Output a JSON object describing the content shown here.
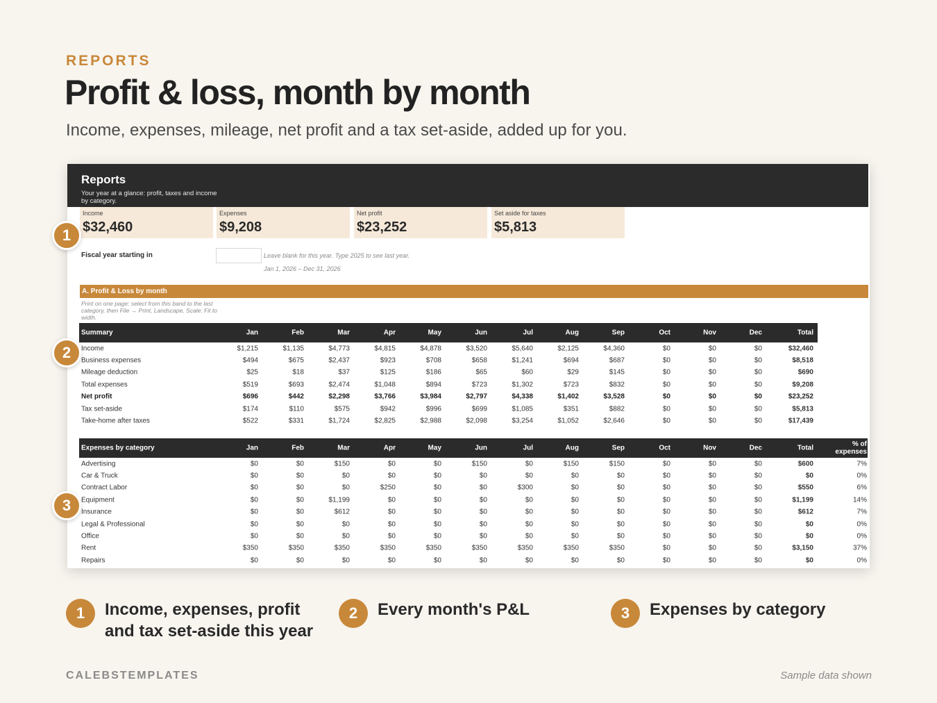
{
  "page": {
    "eyebrow": "REPORTS",
    "headline": "Profit & loss, month by month",
    "subhead": "Income, expenses, mileage, net profit and a tax set-aside, added up for you."
  },
  "sheet": {
    "title": "Reports",
    "subtitle": "Your year at a glance: profit, taxes and income by category.",
    "kpis": [
      {
        "label": "Income",
        "value": "$32,460"
      },
      {
        "label": "Expenses",
        "value": "$9,208"
      },
      {
        "label": "Net profit",
        "value": "$23,252"
      },
      {
        "label": "Set aside for taxes",
        "value": "$5,813"
      }
    ],
    "fiscal": {
      "label": "Fiscal year starting in",
      "value": "",
      "hint": "Leave blank for this year. Type 2025 to see last year.",
      "range": "Jan 1, 2026 – Dec 31, 2026"
    },
    "band": {
      "label": "A. Profit & Loss by month",
      "note": "Print on one page: select from this band to the last category, then File → Print, Landscape, Scale: Fit to width."
    },
    "summary": {
      "title": "Summary",
      "columns": [
        "Jan",
        "Feb",
        "Mar",
        "Apr",
        "May",
        "Jun",
        "Jul",
        "Aug",
        "Sep",
        "Oct",
        "Nov",
        "Dec",
        "Total"
      ],
      "rows": [
        {
          "label": "Income",
          "bold": false,
          "values": [
            "$1,215",
            "$1,135",
            "$4,773",
            "$4,815",
            "$4,878",
            "$3,520",
            "$5,640",
            "$2,125",
            "$4,360",
            "$0",
            "$0",
            "$0",
            "$32,460"
          ]
        },
        {
          "label": "Business expenses",
          "bold": false,
          "values": [
            "$494",
            "$675",
            "$2,437",
            "$923",
            "$708",
            "$658",
            "$1,241",
            "$694",
            "$687",
            "$0",
            "$0",
            "$0",
            "$8,518"
          ]
        },
        {
          "label": "Mileage deduction",
          "bold": false,
          "values": [
            "$25",
            "$18",
            "$37",
            "$125",
            "$186",
            "$65",
            "$60",
            "$29",
            "$145",
            "$0",
            "$0",
            "$0",
            "$690"
          ]
        },
        {
          "label": "Total expenses",
          "bold": false,
          "values": [
            "$519",
            "$693",
            "$2,474",
            "$1,048",
            "$894",
            "$723",
            "$1,302",
            "$723",
            "$832",
            "$0",
            "$0",
            "$0",
            "$9,208"
          ]
        },
        {
          "label": "Net profit",
          "bold": true,
          "values": [
            "$696",
            "$442",
            "$2,298",
            "$3,766",
            "$3,984",
            "$2,797",
            "$4,338",
            "$1,402",
            "$3,528",
            "$0",
            "$0",
            "$0",
            "$23,252"
          ]
        },
        {
          "label": "Tax set-aside",
          "bold": false,
          "values": [
            "$174",
            "$110",
            "$575",
            "$942",
            "$996",
            "$699",
            "$1,085",
            "$351",
            "$882",
            "$0",
            "$0",
            "$0",
            "$5,813"
          ]
        },
        {
          "label": "Take-home after taxes",
          "bold": false,
          "values": [
            "$522",
            "$331",
            "$1,724",
            "$2,825",
            "$2,988",
            "$2,098",
            "$3,254",
            "$1,052",
            "$2,646",
            "$0",
            "$0",
            "$0",
            "$17,439"
          ]
        }
      ]
    },
    "expenses": {
      "title": "Expenses by category",
      "columns": [
        "Jan",
        "Feb",
        "Mar",
        "Apr",
        "May",
        "Jun",
        "Jul",
        "Aug",
        "Sep",
        "Oct",
        "Nov",
        "Dec",
        "Total"
      ],
      "pct_header_1": "% of",
      "pct_header_2": "expenses",
      "rows": [
        {
          "label": "Advertising",
          "values": [
            "$0",
            "$0",
            "$150",
            "$0",
            "$0",
            "$150",
            "$0",
            "$150",
            "$150",
            "$0",
            "$0",
            "$0",
            "$600"
          ],
          "pct": "7%"
        },
        {
          "label": "Car & Truck",
          "values": [
            "$0",
            "$0",
            "$0",
            "$0",
            "$0",
            "$0",
            "$0",
            "$0",
            "$0",
            "$0",
            "$0",
            "$0",
            "$0"
          ],
          "pct": "0%"
        },
        {
          "label": "Contract Labor",
          "values": [
            "$0",
            "$0",
            "$0",
            "$250",
            "$0",
            "$0",
            "$300",
            "$0",
            "$0",
            "$0",
            "$0",
            "$0",
            "$550"
          ],
          "pct": "6%"
        },
        {
          "label": "Equipment",
          "values": [
            "$0",
            "$0",
            "$1,199",
            "$0",
            "$0",
            "$0",
            "$0",
            "$0",
            "$0",
            "$0",
            "$0",
            "$0",
            "$1,199"
          ],
          "pct": "14%"
        },
        {
          "label": "Insurance",
          "values": [
            "$0",
            "$0",
            "$612",
            "$0",
            "$0",
            "$0",
            "$0",
            "$0",
            "$0",
            "$0",
            "$0",
            "$0",
            "$612"
          ],
          "pct": "7%"
        },
        {
          "label": "Legal & Professional",
          "values": [
            "$0",
            "$0",
            "$0",
            "$0",
            "$0",
            "$0",
            "$0",
            "$0",
            "$0",
            "$0",
            "$0",
            "$0",
            "$0"
          ],
          "pct": "0%"
        },
        {
          "label": "Office",
          "values": [
            "$0",
            "$0",
            "$0",
            "$0",
            "$0",
            "$0",
            "$0",
            "$0",
            "$0",
            "$0",
            "$0",
            "$0",
            "$0"
          ],
          "pct": "0%"
        },
        {
          "label": "Rent",
          "values": [
            "$350",
            "$350",
            "$350",
            "$350",
            "$350",
            "$350",
            "$350",
            "$350",
            "$350",
            "$0",
            "$0",
            "$0",
            "$3,150"
          ],
          "pct": "37%"
        },
        {
          "label": "Repairs",
          "values": [
            "$0",
            "$0",
            "$0",
            "$0",
            "$0",
            "$0",
            "$0",
            "$0",
            "$0",
            "$0",
            "$0",
            "$0",
            "$0"
          ],
          "pct": "0%"
        }
      ]
    }
  },
  "markers": [
    "1",
    "2",
    "3"
  ],
  "legend": [
    {
      "num": "1",
      "text": "Income, expenses, profit and tax set-aside this year"
    },
    {
      "num": "2",
      "text": "Every month's P&L"
    },
    {
      "num": "3",
      "text": "Expenses by category"
    }
  ],
  "footer": {
    "brand": "CALEBSTEMPLATES",
    "note": "Sample data shown"
  },
  "colors": {
    "accent": "#c8883a",
    "dark": "#2b2b2b",
    "kpi_bg": "#f6e9d9",
    "page_bg": "#f8f5ef"
  }
}
